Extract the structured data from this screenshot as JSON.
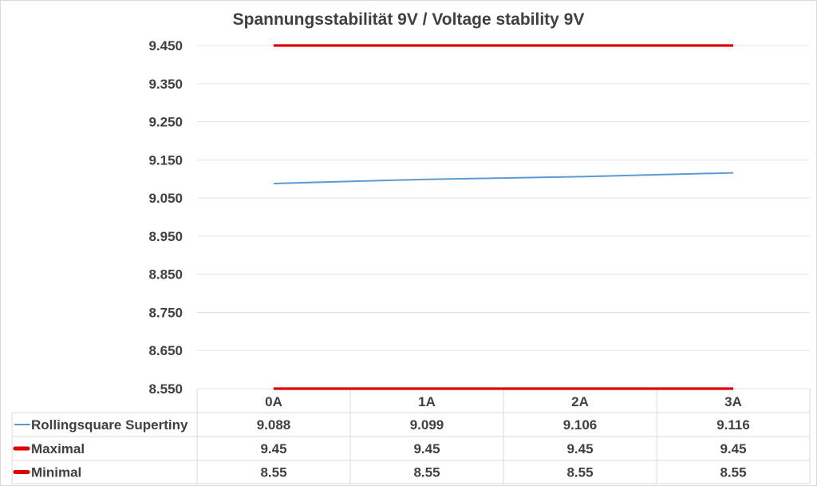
{
  "chart_data": {
    "type": "line",
    "title": "Spannungsstabilität 9V / Voltage stability 9V",
    "categories": [
      "0A",
      "1A",
      "2A",
      "3A"
    ],
    "ylim": [
      8.55,
      9.45
    ],
    "yticks": [
      "9.450",
      "9.350",
      "9.250",
      "9.150",
      "9.050",
      "8.950",
      "8.850",
      "8.750",
      "8.650",
      "8.550"
    ],
    "ytick_values": [
      9.45,
      9.35,
      9.25,
      9.15,
      9.05,
      8.95,
      8.85,
      8.75,
      8.65,
      8.55
    ],
    "grid": true,
    "legend": "data-table",
    "series": [
      {
        "name": "Rollingsquare Supertiny",
        "values": [
          9.088,
          9.099,
          9.106,
          9.116
        ],
        "labels": [
          "9.088",
          "9.099",
          "9.106",
          "9.116"
        ],
        "color": "#5b9bd5"
      },
      {
        "name": "Maximal",
        "values": [
          9.45,
          9.45,
          9.45,
          9.45
        ],
        "labels": [
          "9.45",
          "9.45",
          "9.45",
          "9.45"
        ],
        "color": "#e00000"
      },
      {
        "name": "Minimal",
        "values": [
          8.55,
          8.55,
          8.55,
          8.55
        ],
        "labels": [
          "8.55",
          "8.55",
          "8.55",
          "8.55"
        ],
        "color": "#e00000"
      }
    ]
  }
}
